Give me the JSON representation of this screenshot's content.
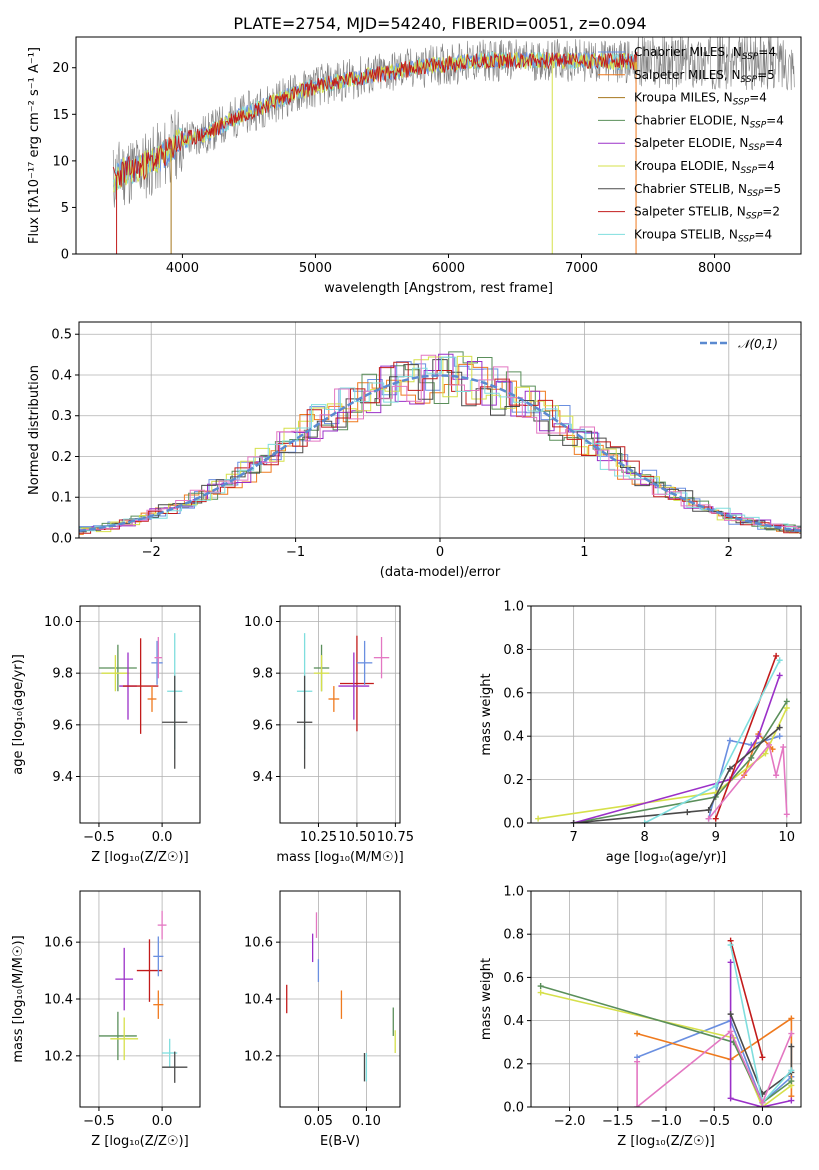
{
  "title": "PLATE=2754, MJD=54240, FIBERID=0051, z=0.094",
  "colors": {
    "Chabrier MILES": "#6a8fe0",
    "Salpeter MILES": "#ef7a1e",
    "Kroupa MILES": "#a6761d",
    "Chabrier ELODIE": "#5a8f5a",
    "Salpeter ELODIE": "#9b30c8",
    "Kroupa ELODIE": "#d6e04a",
    "Chabrier STELIB": "#4a4a4a",
    "Salpeter STELIB": "#c21b1b",
    "Kroupa STELIB": "#7fdede",
    "pink": "#e377c2",
    "spectrum_gray": "#7f7f7f",
    "gaussian": "#5b8ad0"
  },
  "legend": [
    {
      "label": "Chabrier MILES, N",
      "sub": "SSP",
      "tail": "=4",
      "color": "Chabrier MILES"
    },
    {
      "label": "Salpeter MILES, N",
      "sub": "SSP",
      "tail": "=5",
      "color": "Salpeter MILES"
    },
    {
      "label": "Kroupa MILES, N",
      "sub": "SSP",
      "tail": "=4",
      "color": "Kroupa MILES"
    },
    {
      "label": "Chabrier ELODIE, N",
      "sub": "SSP",
      "tail": "=4",
      "color": "Chabrier ELODIE"
    },
    {
      "label": "Salpeter ELODIE, N",
      "sub": "SSP",
      "tail": "=4",
      "color": "Salpeter ELODIE"
    },
    {
      "label": "Kroupa ELODIE, N",
      "sub": "SSP",
      "tail": "=4",
      "color": "Kroupa ELODIE"
    },
    {
      "label": "Chabrier STELIB, N",
      "sub": "SSP",
      "tail": "=5",
      "color": "Chabrier STELIB"
    },
    {
      "label": "Salpeter STELIB, N",
      "sub": "SSP",
      "tail": "=2",
      "color": "Salpeter STELIB"
    },
    {
      "label": "Kroupa STELIB, N",
      "sub": "SSP",
      "tail": "=4",
      "color": "Kroupa STELIB"
    }
  ],
  "chart_data": [
    {
      "type": "line",
      "id": "spectrum",
      "xlabel": "wavelength [Angstrom, rest frame]",
      "ylabel": "Flux [fλ10⁻¹⁷ erg cm⁻² s⁻¹ A⁻¹]",
      "xlim": [
        3200,
        8650
      ],
      "ylim": [
        0,
        23.3
      ],
      "xticks": [
        4000,
        5000,
        6000,
        7000,
        8000
      ],
      "yticks": [
        0,
        5,
        10,
        15,
        20
      ],
      "continuum": [
        [
          3480,
          8.0
        ],
        [
          3550,
          8.8
        ],
        [
          3700,
          9.4
        ],
        [
          3850,
          10.5
        ],
        [
          3950,
          11.8
        ],
        [
          4050,
          12.4
        ],
        [
          4200,
          13.0
        ],
        [
          4400,
          14.7
        ],
        [
          4600,
          15.8
        ],
        [
          4800,
          17.0
        ],
        [
          5000,
          18.0
        ],
        [
          5200,
          18.6
        ],
        [
          5500,
          19.4
        ],
        [
          5800,
          20.1
        ],
        [
          6000,
          20.4
        ],
        [
          6300,
          20.8
        ],
        [
          6600,
          20.8
        ],
        [
          6900,
          20.8
        ],
        [
          7200,
          20.7
        ],
        [
          7420,
          20.6
        ]
      ],
      "observed_range": [
        3480,
        8600
      ],
      "model_range": [
        3480,
        7420
      ],
      "dropouts": [
        [
          3505,
          "Salpeter STELIB"
        ],
        [
          3915,
          "Kroupa MILES"
        ],
        [
          6780,
          "Kroupa ELODIE"
        ],
        [
          7410,
          "Salpeter MILES"
        ]
      ],
      "gap": [
        6800,
        6830
      ]
    },
    {
      "type": "bar",
      "id": "residuals",
      "xlabel": "(data-model)/error",
      "ylabel": "Normed distribution",
      "xlim": [
        -2.5,
        2.5
      ],
      "ylim": [
        0,
        0.53
      ],
      "xticks": [
        -2,
        -1,
        0,
        1,
        2
      ],
      "yticks": [
        0.0,
        0.1,
        0.2,
        0.3,
        0.4,
        0.5
      ],
      "legend_label": "𝒩(0,1)",
      "bin_width": 0.1,
      "series": [
        {
          "name": "Chabrier MILES",
          "offset": 0.0,
          "seed": 1
        },
        {
          "name": "Salpeter MILES",
          "offset": 0.03,
          "seed": 2
        },
        {
          "name": "Chabrier ELODIE",
          "offset": 0.06,
          "seed": 3
        },
        {
          "name": "Salpeter ELODIE",
          "offset": 0.09,
          "seed": 4
        },
        {
          "name": "Kroupa ELODIE",
          "offset": 0.02,
          "seed": 5
        },
        {
          "name": "Chabrier STELIB",
          "offset": 0.05,
          "seed": 6
        },
        {
          "name": "Salpeter STELIB",
          "offset": 0.08,
          "seed": 7
        },
        {
          "name": "Kroupa STELIB",
          "offset": 0.01,
          "seed": 8
        },
        {
          "name": "pink",
          "offset": 0.07,
          "seed": 9
        }
      ]
    },
    {
      "type": "scatter",
      "id": "age_vs_Z",
      "xlabel": "Z [log₁₀(Z/Z☉)]",
      "ylabel": "age  [log₁₀(age/yr)]",
      "xlim": [
        -0.65,
        0.3
      ],
      "ylim": [
        9.22,
        10.06
      ],
      "xticks": [
        -0.5,
        0.0
      ],
      "yticks": [
        9.4,
        9.6,
        9.8,
        10.0
      ],
      "points": [
        {
          "series": "Chabrier ELODIE",
          "x": -0.35,
          "y": 9.82,
          "xerr": 0.3,
          "yerr": 0.18
        },
        {
          "series": "Kroupa ELODIE",
          "x": -0.37,
          "y": 9.8,
          "xerr": 0.22,
          "yerr": 0.14
        },
        {
          "series": "Salpeter ELODIE",
          "x": -0.27,
          "y": 9.75,
          "xerr": 0.14,
          "yerr": 0.26
        },
        {
          "series": "Salpeter STELIB",
          "x": -0.17,
          "y": 9.75,
          "xerr": 0.28,
          "yerr": 0.37
        },
        {
          "series": "Chabrier MILES",
          "x": -0.04,
          "y": 9.84,
          "xerr": 0.09,
          "yerr": 0.17
        },
        {
          "series": "pink",
          "x": -0.03,
          "y": 9.86,
          "xerr": 0.06,
          "yerr": 0.16
        },
        {
          "series": "Salpeter MILES",
          "x": -0.08,
          "y": 9.7,
          "xerr": 0.07,
          "yerr": 0.1
        },
        {
          "series": "Kroupa STELIB",
          "x": 0.1,
          "y": 9.73,
          "xerr": 0.12,
          "yerr": 0.45
        },
        {
          "series": "Chabrier STELIB",
          "x": 0.1,
          "y": 9.61,
          "xerr": 0.2,
          "yerr": 0.36
        }
      ]
    },
    {
      "type": "scatter",
      "id": "age_vs_mass",
      "xlabel": "mass [log₁₀(M/M☉)]",
      "ylabel": "",
      "xlim": [
        10.0,
        10.78
      ],
      "ylim": [
        9.22,
        10.06
      ],
      "xticks": [
        10.25,
        10.5,
        10.75
      ],
      "yticks": [
        9.4,
        9.6,
        9.8,
        10.0
      ],
      "points": [
        {
          "series": "Chabrier ELODIE",
          "x": 10.27,
          "y": 9.82,
          "xerr": 0.1,
          "yerr": 0.18
        },
        {
          "series": "Kroupa ELODIE",
          "x": 10.27,
          "y": 9.8,
          "xerr": 0.1,
          "yerr": 0.14
        },
        {
          "series": "Salpeter MILES",
          "x": 10.35,
          "y": 9.7,
          "xerr": 0.07,
          "yerr": 0.1
        },
        {
          "series": "Salpeter STELIB",
          "x": 10.5,
          "y": 9.76,
          "xerr": 0.22,
          "yerr": 0.37
        },
        {
          "series": "Salpeter ELODIE",
          "x": 10.48,
          "y": 9.75,
          "xerr": 0.2,
          "yerr": 0.26
        },
        {
          "series": "Chabrier MILES",
          "x": 10.55,
          "y": 9.84,
          "xerr": 0.1,
          "yerr": 0.17
        },
        {
          "series": "pink",
          "x": 10.66,
          "y": 9.86,
          "xerr": 0.1,
          "yerr": 0.16
        },
        {
          "series": "Kroupa STELIB",
          "x": 10.16,
          "y": 9.73,
          "xerr": 0.1,
          "yerr": 0.45
        },
        {
          "series": "Chabrier STELIB",
          "x": 10.16,
          "y": 9.61,
          "xerr": 0.1,
          "yerr": 0.36
        }
      ]
    },
    {
      "type": "line",
      "id": "weight_vs_age",
      "xlabel": "age  [log₁₀(age/yr)]",
      "ylabel": "mass weight",
      "xlim": [
        6.4,
        10.2
      ],
      "ylim": [
        0,
        1.0
      ],
      "xticks": [
        7,
        8,
        9,
        10
      ],
      "yticks": [
        0.0,
        0.2,
        0.4,
        0.6,
        0.8,
        1.0
      ],
      "series": [
        {
          "name": "Chabrier MILES",
          "x": [
            8.9,
            9.2,
            9.5,
            9.9
          ],
          "y": [
            0.02,
            0.38,
            0.36,
            0.4
          ]
        },
        {
          "name": "Salpeter MILES",
          "x": [
            9.4,
            9.6,
            9.8
          ],
          "y": [
            0.22,
            0.41,
            0.34
          ]
        },
        {
          "name": "Kroupa ELODIE",
          "x": [
            6.5,
            9.0,
            9.7,
            10.0
          ],
          "y": [
            0.02,
            0.14,
            0.32,
            0.53
          ]
        },
        {
          "name": "Chabrier ELODIE",
          "x": [
            7.0,
            9.0,
            9.5,
            10.0
          ],
          "y": [
            0.0,
            0.12,
            0.3,
            0.56
          ]
        },
        {
          "name": "Salpeter ELODIE",
          "x": [
            7.0,
            9.2,
            9.6,
            9.9
          ],
          "y": [
            0.0,
            0.2,
            0.4,
            0.68
          ]
        },
        {
          "name": "Chabrier STELIB",
          "x": [
            7.0,
            8.6,
            8.9,
            9.2,
            9.9
          ],
          "y": [
            0.0,
            0.05,
            0.06,
            0.25,
            0.44
          ]
        },
        {
          "name": "Salpeter STELIB",
          "x": [
            9.0,
            9.85
          ],
          "y": [
            0.02,
            0.77
          ]
        },
        {
          "name": "Kroupa STELIB",
          "x": [
            8.0,
            9.0,
            9.9
          ],
          "y": [
            0.0,
            0.17,
            0.75
          ]
        },
        {
          "name": "pink",
          "x": [
            8.9,
            9.75,
            9.85,
            9.95,
            10.0
          ],
          "y": [
            0.02,
            0.36,
            0.22,
            0.35,
            0.04
          ]
        }
      ]
    },
    {
      "type": "scatter",
      "id": "mass_vs_Z",
      "xlabel": "Z [log₁₀(Z/Z☉)]",
      "ylabel": "mass [log₁₀(M/M☉)]",
      "xlim": [
        -0.65,
        0.3
      ],
      "ylim": [
        10.02,
        10.78
      ],
      "xticks": [
        -0.5,
        0.0
      ],
      "yticks": [
        10.2,
        10.4,
        10.6
      ],
      "points": [
        {
          "series": "Chabrier ELODIE",
          "x": -0.35,
          "y": 10.27,
          "xerr": 0.3,
          "yerr": 0.17
        },
        {
          "series": "Kroupa ELODIE",
          "x": -0.3,
          "y": 10.26,
          "xerr": 0.22,
          "yerr": 0.15
        },
        {
          "series": "Salpeter ELODIE",
          "x": -0.3,
          "y": 10.47,
          "xerr": 0.14,
          "yerr": 0.22
        },
        {
          "series": "Salpeter STELIB",
          "x": -0.1,
          "y": 10.5,
          "xerr": 0.2,
          "yerr": 0.22
        },
        {
          "series": "Salpeter MILES",
          "x": -0.03,
          "y": 10.38,
          "xerr": 0.08,
          "yerr": 0.1
        },
        {
          "series": "Chabrier MILES",
          "x": -0.03,
          "y": 10.55,
          "xerr": 0.08,
          "yerr": 0.14
        },
        {
          "series": "pink",
          "x": 0.0,
          "y": 10.66,
          "xerr": 0.07,
          "yerr": 0.1
        },
        {
          "series": "Kroupa STELIB",
          "x": 0.06,
          "y": 10.21,
          "xerr": 0.12,
          "yerr": 0.1
        },
        {
          "series": "Chabrier STELIB",
          "x": 0.1,
          "y": 10.16,
          "xerr": 0.2,
          "yerr": 0.11
        }
      ]
    },
    {
      "type": "scatter",
      "id": "mass_vs_ebv",
      "xlabel": "E(B-V)",
      "ylabel": "",
      "xlim": [
        0.01,
        0.135
      ],
      "ylim": [
        10.02,
        10.78
      ],
      "xticks": [
        0.05,
        0.1
      ],
      "yticks": [
        10.2,
        10.4,
        10.6
      ],
      "points": [
        {
          "series": "Salpeter STELIB",
          "x": 0.017,
          "y": 10.4,
          "yerr": 0.1
        },
        {
          "series": "Salpeter ELODIE",
          "x": 0.044,
          "y": 10.58,
          "yerr": 0.1
        },
        {
          "series": "pink",
          "x": 0.048,
          "y": 10.66,
          "yerr": 0.09
        },
        {
          "series": "Chabrier MILES",
          "x": 0.05,
          "y": 10.5,
          "yerr": 0.08
        },
        {
          "series": "Salpeter MILES",
          "x": 0.074,
          "y": 10.38,
          "yerr": 0.1
        },
        {
          "series": "Chabrier STELIB",
          "x": 0.098,
          "y": 10.16,
          "yerr": 0.1
        },
        {
          "series": "Kroupa STELIB",
          "x": 0.1,
          "y": 10.16,
          "yerr": 0.1
        },
        {
          "series": "Chabrier ELODIE",
          "x": 0.128,
          "y": 10.32,
          "yerr": 0.1
        },
        {
          "series": "Kroupa ELODIE",
          "x": 0.13,
          "y": 10.25,
          "yerr": 0.08
        }
      ]
    },
    {
      "type": "line",
      "id": "weight_vs_Z",
      "xlabel": "Z [log₁₀(Z/Z☉)]",
      "ylabel": "mass weight",
      "xlim": [
        -2.4,
        0.4
      ],
      "ylim": [
        0,
        1.0
      ],
      "xticks": [
        -2.0,
        -1.5,
        -1.0,
        -0.5,
        0.0
      ],
      "yticks": [
        0.0,
        0.2,
        0.4,
        0.6,
        0.8,
        1.0
      ],
      "series": [
        {
          "name": "Chabrier MILES",
          "x": [
            -1.3,
            -0.33,
            0.0,
            0.3
          ],
          "y": [
            0.23,
            0.4,
            0.02,
            0.14
          ]
        },
        {
          "name": "Salpeter MILES",
          "x": [
            -1.3,
            -0.33,
            0.3,
            0.3
          ],
          "y": [
            0.34,
            0.22,
            0.41,
            0.05
          ]
        },
        {
          "name": "Kroupa ELODIE",
          "x": [
            -2.3,
            -0.3,
            0.0,
            0.3
          ],
          "y": [
            0.53,
            0.32,
            0.0,
            0.1
          ]
        },
        {
          "name": "Chabrier ELODIE",
          "x": [
            -2.3,
            -0.3,
            0.0,
            0.3
          ],
          "y": [
            0.56,
            0.3,
            0.02,
            0.12
          ]
        },
        {
          "name": "Salpeter ELODIE",
          "x": [
            -0.33,
            -0.33,
            0.0,
            0.3
          ],
          "y": [
            0.67,
            0.04,
            0.0,
            0.03
          ]
        },
        {
          "name": "Chabrier STELIB",
          "x": [
            -0.33,
            0.0,
            0.3,
            0.3
          ],
          "y": [
            0.43,
            0.06,
            0.16,
            0.28
          ]
        },
        {
          "name": "Salpeter STELIB",
          "x": [
            -0.33,
            0.0
          ],
          "y": [
            0.77,
            0.23
          ]
        },
        {
          "name": "Kroupa STELIB",
          "x": [
            -0.33,
            0.0,
            0.3
          ],
          "y": [
            0.75,
            0.02,
            0.17
          ]
        },
        {
          "name": "pink",
          "x": [
            -1.3,
            -1.3,
            -0.33,
            0.0,
            0.3
          ],
          "y": [
            0.21,
            0.0,
            0.35,
            0.02,
            0.34
          ]
        }
      ]
    }
  ]
}
